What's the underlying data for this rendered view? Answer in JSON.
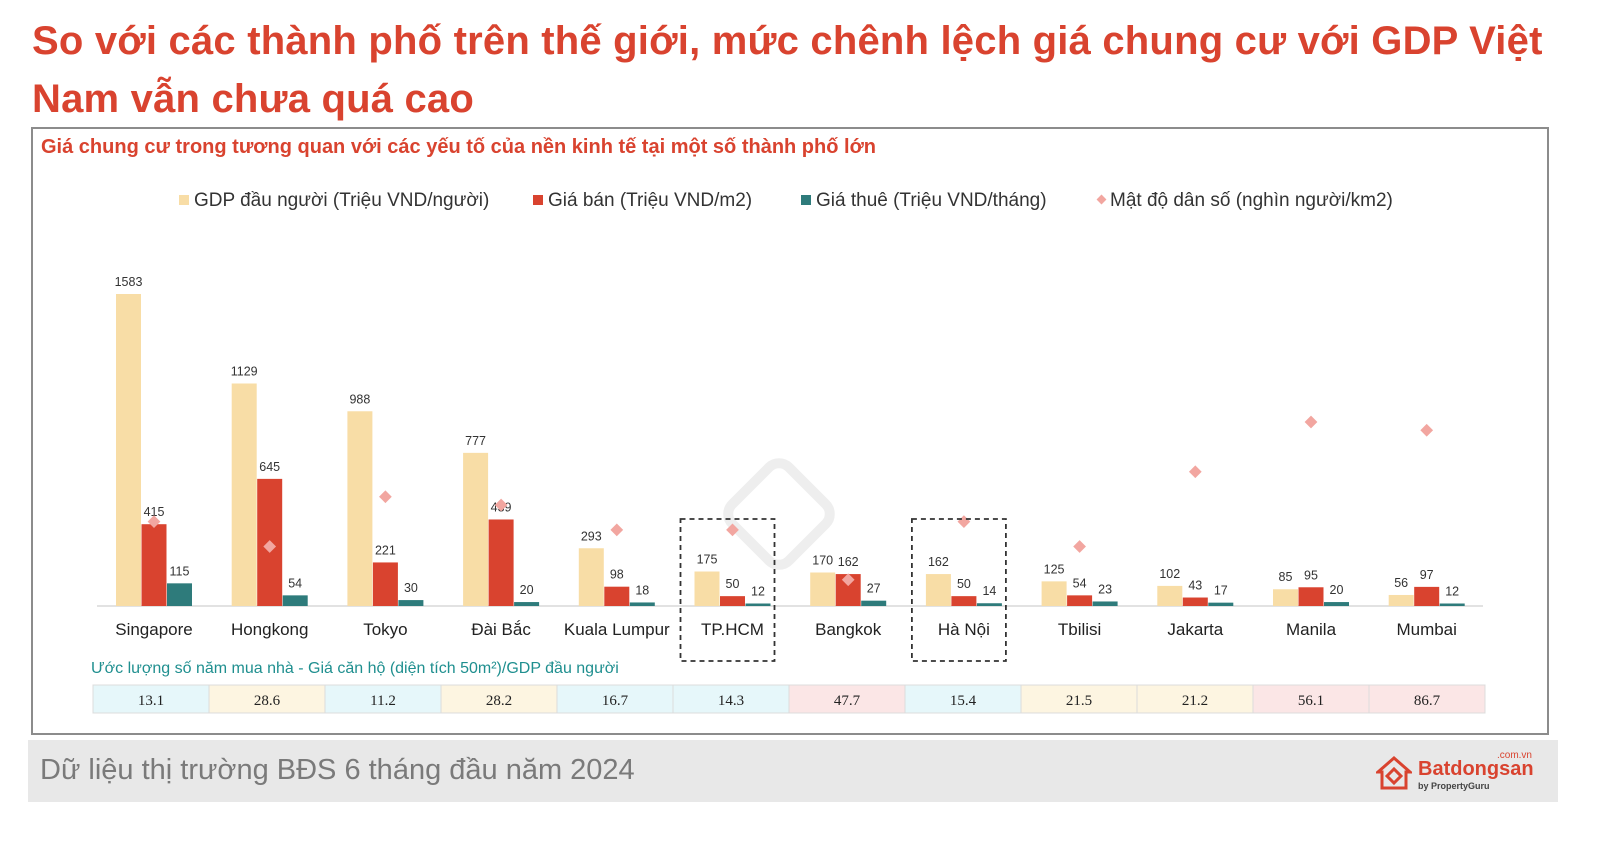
{
  "headline": "So với các thành phố trên thế giới, mức chênh lệch giá chung cư với GDP Việt Nam vẫn chưa quá cao",
  "footer": {
    "text": "Dữ liệu thị trường BĐS 6 tháng đầu năm 2024",
    "logo_name": "Batdongsan",
    "logo_suffix": ".com.vn",
    "logo_byline": "by PropertyGuru"
  },
  "colors": {
    "gdp": "#f8dda6",
    "price": "#d9432f",
    "rent": "#2e7b7b",
    "density": "#f2a6a0",
    "title_red": "#d9432f",
    "subtitle_teal": "#1f8f8f"
  },
  "chart_data": {
    "type": "bar",
    "title": "Giá chung cư trong tương quan với các yếu tố của nền kinh tế tại một số thành phố lớn",
    "legend_position": "top",
    "categories": [
      "Singapore",
      "Hongkong",
      "Tokyo",
      "Đài Bắc",
      "Kuala Lumpur",
      "TP.HCM",
      "Bangkok",
      "Hà Nội",
      "Tbilisi",
      "Jakarta",
      "Manila",
      "Mumbai"
    ],
    "highlighted_categories": [
      "TP.HCM",
      "Hà Nội"
    ],
    "series": [
      {
        "name": "GDP đầu người (Triệu VND/người)",
        "values": [
          1583,
          1129,
          988,
          777,
          293,
          175,
          170,
          162,
          125,
          102,
          85,
          56
        ]
      },
      {
        "name": "Giá bán (Triệu VND/m2)",
        "values": [
          415,
          645,
          221,
          439,
          98,
          50,
          162,
          50,
          54,
          43,
          95,
          97
        ]
      },
      {
        "name": "Giá thuê (Triệu VND/tháng)",
        "values": [
          115,
          54,
          30,
          20,
          18,
          12,
          27,
          14,
          23,
          17,
          20,
          12
        ]
      },
      {
        "name": "Mật độ dân số (nghìn người/km2)",
        "marker": "diamond",
        "values": [
          8,
          5,
          11,
          10,
          7,
          7,
          1,
          8,
          5,
          14,
          20,
          19
        ]
      }
    ],
    "table": {
      "title": "Ước lượng số năm mua nhà - Giá căn hộ (diện tích 50m²)/GDP đầu người",
      "values": [
        "13.1",
        "28.6",
        "11.2",
        "28.2",
        "16.7",
        "14.3",
        "47.7",
        "15.4",
        "21.5",
        "21.2",
        "56.1",
        "86.7"
      ],
      "cell_colors": [
        "#e6f7fa",
        "#fdf5e1",
        "#e6f7fa",
        "#fdf5e1",
        "#e6f7fa",
        "#e6f7fa",
        "#fbe6e6",
        "#e6f7fa",
        "#fdf5e1",
        "#fdf5e1",
        "#fbe6e6",
        "#fbe6e6"
      ]
    }
  }
}
